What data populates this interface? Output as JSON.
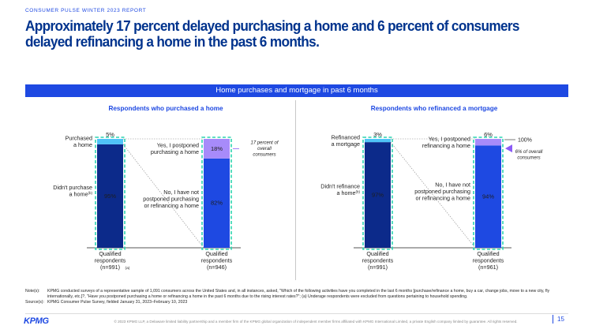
{
  "header": {
    "report_label": "CONSUMER PULSE WINTER 2023 REPORT"
  },
  "title": "Approximately 17 percent delayed purchasing a home and 6 percent of consumers delayed refinancing a home in the past 6 months.",
  "band": {
    "text": "Home purchases and mortgage in past 6 months"
  },
  "colors": {
    "dark_bar": "#0c2a8a",
    "bright_bar": "#1e49e2",
    "light_blue": "#4fc3f7",
    "violet": "#a78bfa",
    "dashed_border": "#2bd4b0",
    "accent": "#8b5cf6"
  },
  "chart_data": [
    {
      "type": "bar",
      "stacked": true,
      "title": "Respondents who purchased a home",
      "categories": [
        "Qualified respondents (n=991) (a)",
        "Qualified respondents (n=946)"
      ],
      "category_lines": [
        [
          "Qualified",
          "respondents",
          "(n=991)"
        ],
        [
          "Qualified",
          "respondents",
          "(n=946)"
        ]
      ],
      "category_superscript": [
        "(a)",
        ""
      ],
      "bars": [
        {
          "segments": [
            {
              "label": "Didn't purchase a home",
              "label_lines": [
                "Didn't purchase",
                "a home"
              ],
              "label_sup": "(b)",
              "value": 95,
              "value_label": "95%",
              "color": "#0c2a8a"
            },
            {
              "label": "Purchased a home",
              "label_lines": [
                "Purchased",
                "a home"
              ],
              "label_sup": "",
              "value": 5,
              "value_label": "5%",
              "color": "#4fc3f7"
            }
          ]
        },
        {
          "segments": [
            {
              "label": "No, I have not postponed purchasing or refinancing a home",
              "label_lines": [
                "No, I have not",
                "postponed purchasing",
                "or refinancing a home"
              ],
              "label_sup": "",
              "value": 82,
              "value_label": "82%",
              "color": "#1e49e2"
            },
            {
              "label": "Yes, I postponed purchasing a home",
              "label_lines": [
                "Yes, I postponed",
                "purchasing a home"
              ],
              "label_sup": "",
              "value": 18,
              "value_label": "18%",
              "color": "#a78bfa"
            }
          ]
        }
      ],
      "annotation": [
        "17 percent of",
        "overall",
        "consumers"
      ],
      "top_label": "",
      "ylim": [
        0,
        100
      ]
    },
    {
      "type": "bar",
      "stacked": true,
      "title": "Respondents who refinanced a mortgage",
      "categories": [
        "Qualified respondents (n=991)",
        "Qualified respondents (n=961)"
      ],
      "category_lines": [
        [
          "Qualified",
          "respondents",
          "(n=991)"
        ],
        [
          "Qualified",
          "respondents",
          "(n=961)"
        ]
      ],
      "category_superscript": [
        "",
        ""
      ],
      "bars": [
        {
          "segments": [
            {
              "label": "Didn't refinance a home",
              "label_lines": [
                "Didn't refinance",
                "a home"
              ],
              "label_sup": "(b)",
              "value": 97,
              "value_label": "97%",
              "color": "#0c2a8a"
            },
            {
              "label": "Refinanced a mortgage",
              "label_lines": [
                "Refinanced",
                "a mortgage"
              ],
              "label_sup": "",
              "value": 3,
              "value_label": "3%",
              "color": "#4fc3f7"
            }
          ]
        },
        {
          "segments": [
            {
              "label": "No, I have not postponed purchasing or refinancing a home",
              "label_lines": [
                "No, I have not",
                "postponed purchasing",
                "or refinancing a home"
              ],
              "label_sup": "",
              "value": 94,
              "value_label": "94%",
              "color": "#1e49e2"
            },
            {
              "label": "Yes, I postponed refinancing a home",
              "label_lines": [
                "Yes, I postponed",
                "refinancing a home"
              ],
              "label_sup": "",
              "value": 6,
              "value_label": "6%",
              "color": "#a78bfa"
            }
          ]
        }
      ],
      "annotation": [
        "6% of overall",
        "consumers"
      ],
      "top_label": "100%",
      "ylim": [
        0,
        100
      ]
    }
  ],
  "notes": {
    "note_key": "Note(s):",
    "note_text": "KPMG conducted surveys of a representative sample of 1,091 consumers across the United States and, in all instances, asked, \"Which of the following activities have you completed in the last 6 months [purchase/refinance a home, buy a car, change jobs, move to a new city, fly internationally, etc.]?, \"Have you postponed purchasing a home or refinancing a home in the past 6 months due to the rising interest rates?\"; (a) Underage respondents were excluded from questions pertaining to household spending.",
    "source_key": "Source(s):",
    "source_text": "KPMG Consumer Pulse Survey, fielded January 31, 2023–February 10, 2023"
  },
  "footer": {
    "logo": "KPMG",
    "copyright": "© 2023 KPMG LLP, a Delaware limited liability partnership and a member firm of the KPMG global organization of independent member firms affiliated with KPMG International Limited, a private English company limited by guarantee. All rights reserved.",
    "page": "15"
  }
}
